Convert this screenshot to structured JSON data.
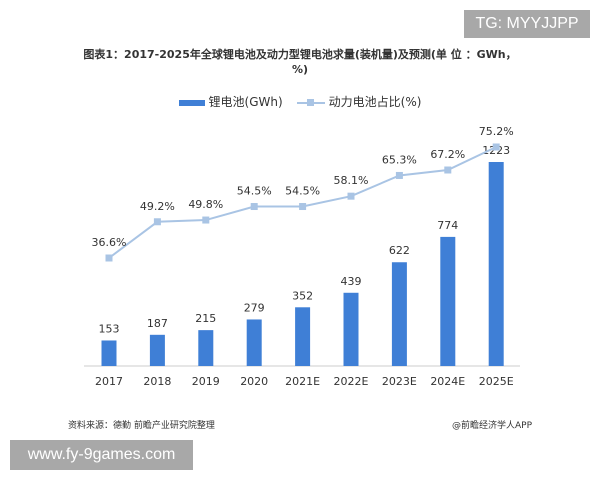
{
  "chart_data": {
    "type": "bar",
    "title": "图表1：2017-2025年全球锂电池及动力型锂电池求量(装机量)及预测(单 位 ：GWh，%)",
    "categories": [
      "2017",
      "2018",
      "2019",
      "2020",
      "2021E",
      "2022E",
      "2023E",
      "2024E",
      "2025E"
    ],
    "series": [
      {
        "name": "锂电池(GWh)",
        "type": "bar",
        "color": "#3f7fd6",
        "values": [
          153,
          187,
          215,
          279,
          352,
          439,
          622,
          774,
          1223
        ]
      },
      {
        "name": "动力电池占比(%)",
        "type": "line",
        "color": "#a9c4e4",
        "values": [
          36.6,
          49.2,
          49.8,
          54.5,
          54.5,
          58.1,
          65.3,
          67.2,
          75.2
        ],
        "labels": [
          "36.6%",
          "49.2%",
          "49.8%",
          "54.5%",
          "54.5%",
          "58.1%",
          "65.3%",
          "67.2%",
          "75.2%"
        ]
      }
    ],
    "legend": "top-center",
    "grid": false,
    "xlabel": "",
    "ylabel": ""
  },
  "footer": {
    "source": "资料来源：德勤 前瞻产业研究院整理",
    "brand": "@前瞻经济学人APP"
  },
  "overlays": {
    "tg": "TG: MYYJJPP",
    "site": "www.fy-9games.com"
  }
}
